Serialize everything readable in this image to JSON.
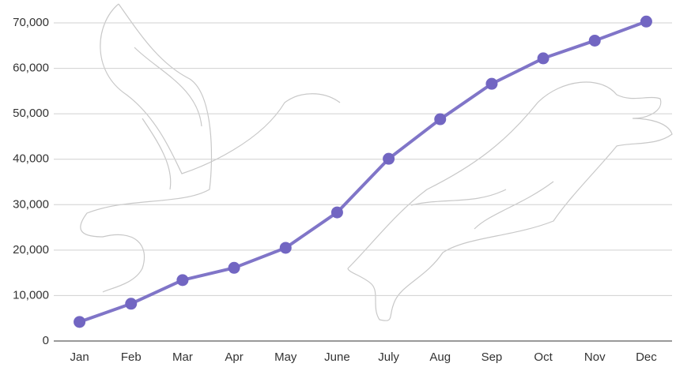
{
  "chart_data": {
    "type": "line",
    "categories": [
      "Jan",
      "Feb",
      "Mar",
      "Apr",
      "May",
      "June",
      "July",
      "Aug",
      "Sep",
      "Oct",
      "Nov",
      "Dec"
    ],
    "values": [
      4200,
      8200,
      13400,
      16100,
      20500,
      28300,
      40100,
      48800,
      56600,
      62200,
      66100,
      70300
    ],
    "color": "#7266c2",
    "ylim": [
      0,
      70000
    ],
    "yticks": [
      0,
      {
        "value": 10000,
        "label": "10,000"
      },
      {
        "value": 20000,
        "label": "20,000"
      },
      {
        "value": 30000,
        "label": "30,000"
      },
      {
        "value": 40000,
        "label": "40,000"
      },
      {
        "value": 50000,
        "label": "50,000"
      },
      {
        "value": 60000,
        "label": "60,000"
      },
      {
        "value": 70000,
        "label": "70,000"
      }
    ],
    "grid": true
  }
}
